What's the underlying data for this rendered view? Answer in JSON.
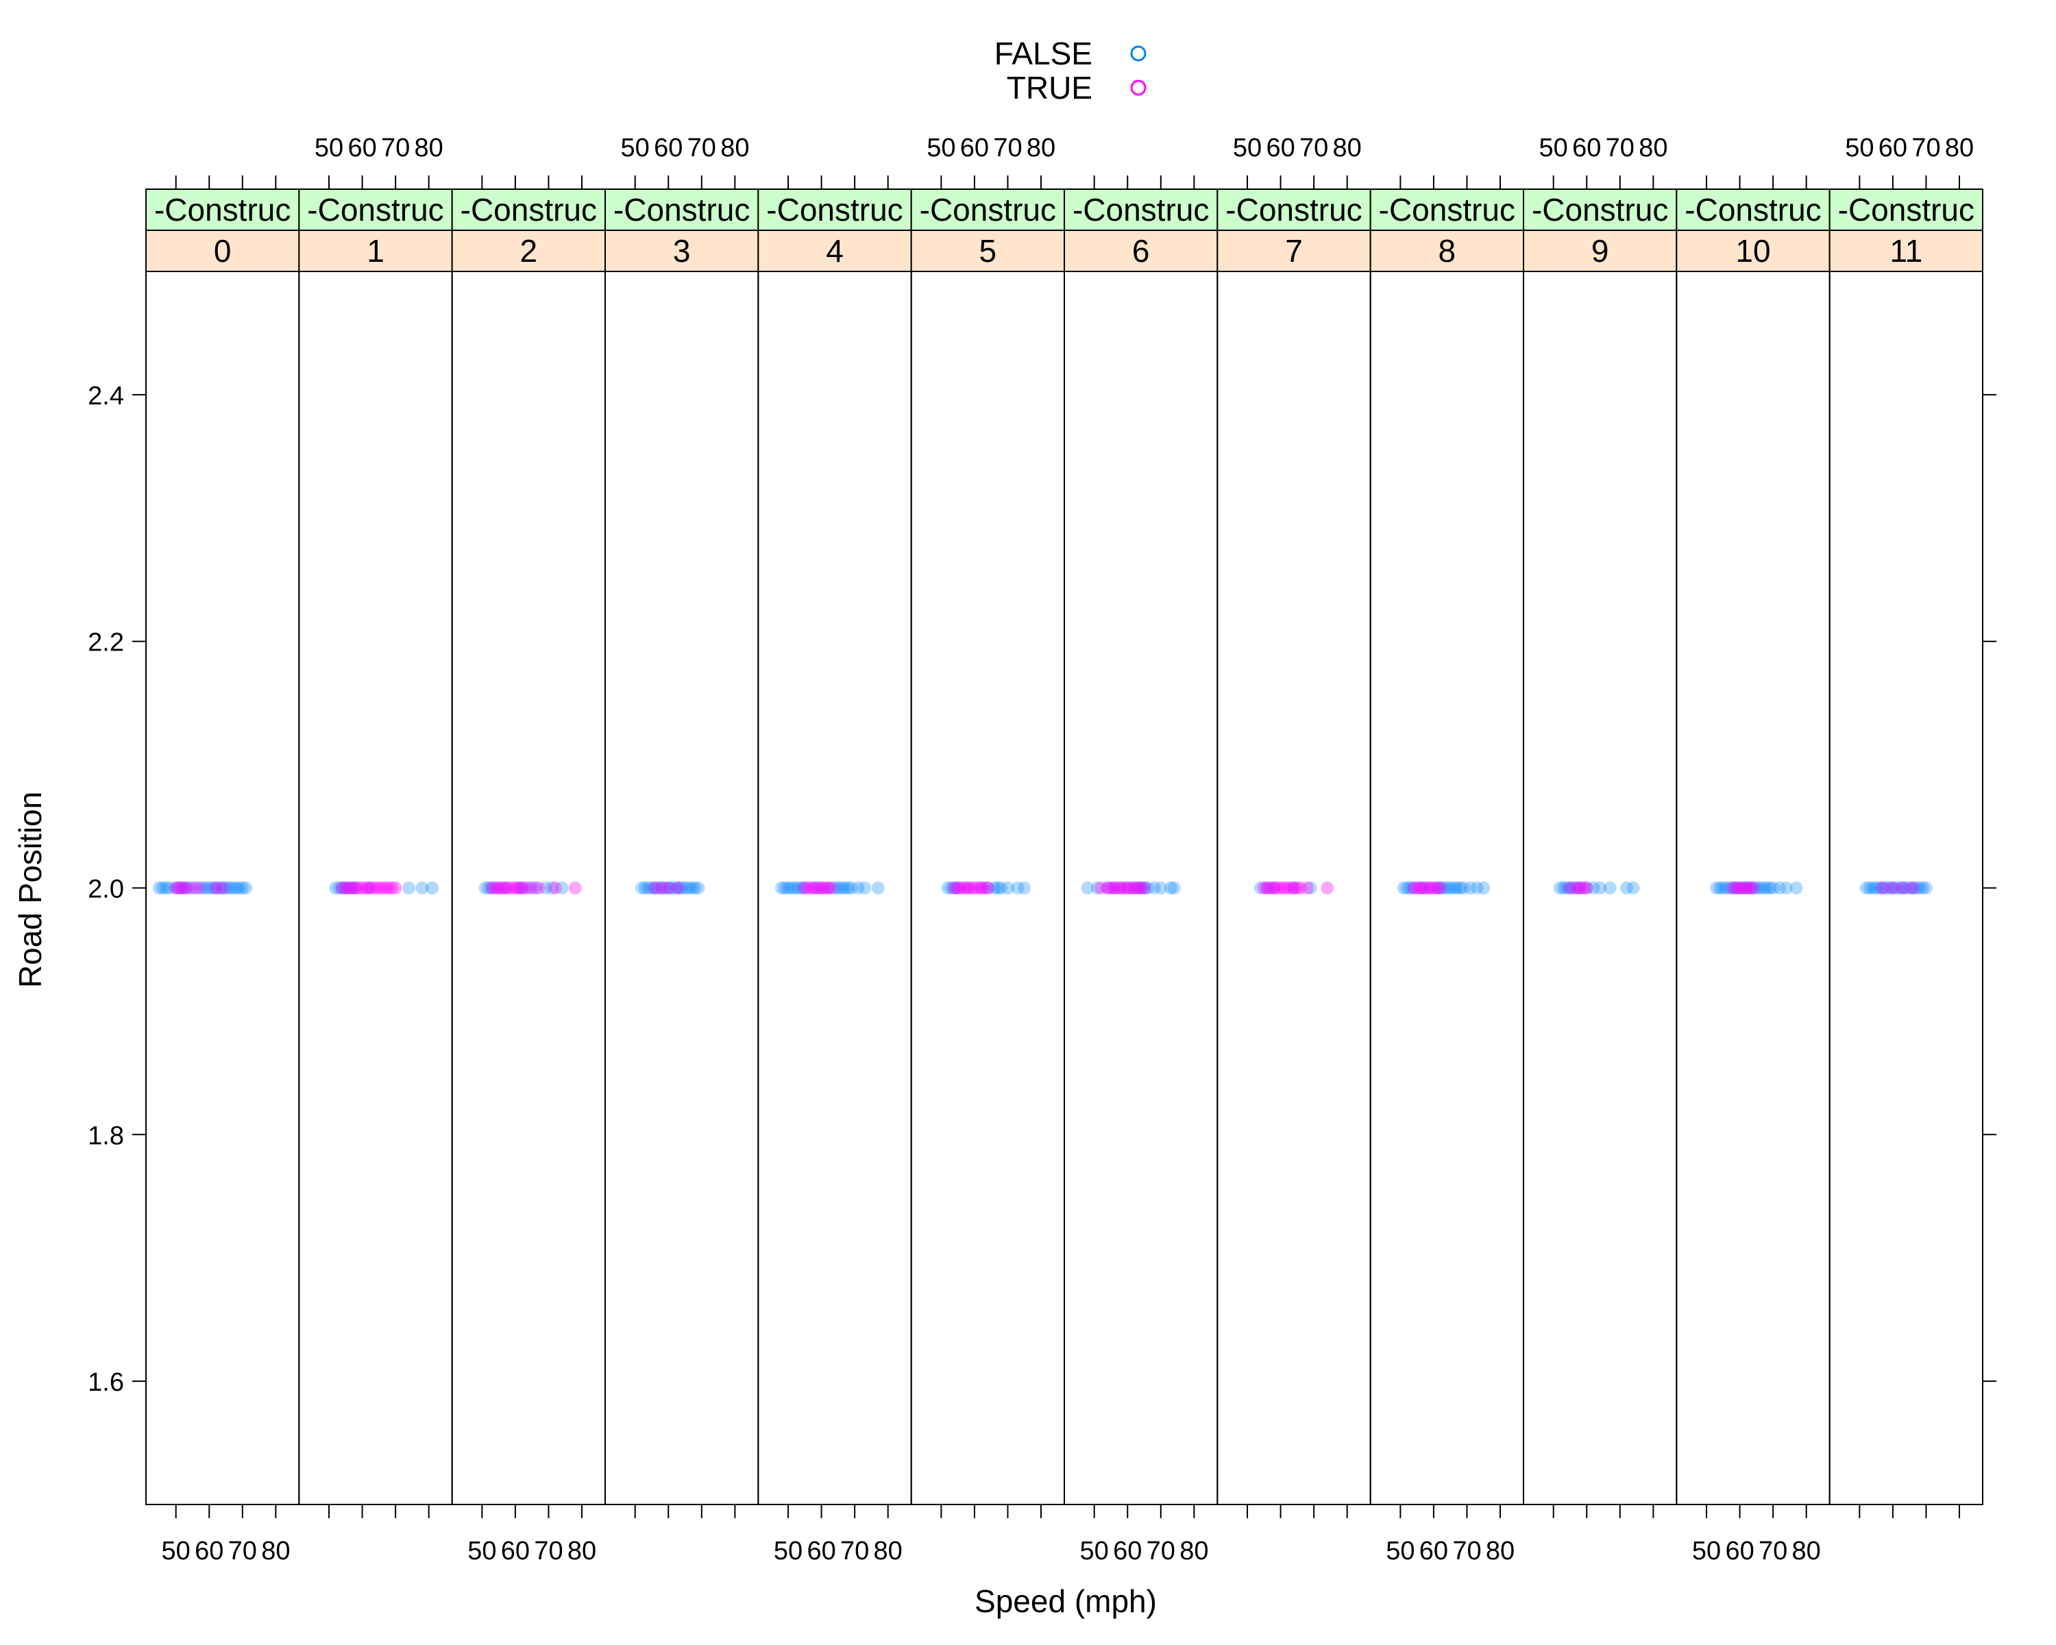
{
  "chart_data": {
    "type": "scatter",
    "title": "",
    "xlabel": "Speed (mph)",
    "ylabel": "Road Position",
    "xlim": [
      41,
      87
    ],
    "ylim": [
      1.5,
      2.5
    ],
    "x_ticks": [
      50,
      60,
      70,
      80
    ],
    "y_ticks": [
      1.6,
      1.8,
      2.0,
      2.2,
      2.4
    ],
    "y_tick_labels": [
      "1.6",
      "1.8",
      "2.0",
      "2.2",
      "2.4"
    ],
    "strip_outer_label": "-Construc",
    "legend": {
      "position": "top",
      "entries": [
        {
          "name": "FALSE",
          "color": "#0080ff"
        },
        {
          "name": "TRUE",
          "color": "#ff00ff"
        }
      ]
    },
    "colors": {
      "FALSE": "#0080ff",
      "TRUE": "#ff00ff",
      "strip_outer": "#ccffcc",
      "strip_inner": "#ffe5cc"
    },
    "panels": [
      {
        "label": "0",
        "false_x": [
          45,
          46,
          47,
          48,
          50,
          51,
          52,
          53,
          54,
          56,
          58,
          59,
          60,
          61,
          62,
          63,
          64,
          65,
          66,
          67,
          68,
          69,
          70,
          71
        ],
        "true_x": [
          50,
          51,
          52,
          53,
          55,
          57,
          62,
          64
        ]
      },
      {
        "label": "1",
        "false_x": [
          52,
          53,
          54,
          55,
          56,
          57,
          58,
          62,
          74,
          78,
          81
        ],
        "true_x": [
          54,
          55,
          56,
          57,
          58,
          59,
          60,
          61,
          62,
          63,
          64,
          65,
          66,
          67,
          68,
          69,
          70
        ]
      },
      {
        "label": "2",
        "false_x": [
          51,
          52,
          53,
          55,
          57,
          61,
          62,
          64,
          66,
          69,
          71,
          74
        ],
        "true_x": [
          53,
          54,
          55,
          56,
          57,
          58,
          59,
          60,
          61,
          62,
          63,
          65,
          67,
          72,
          78
        ]
      },
      {
        "label": "3",
        "false_x": [
          52,
          53,
          54,
          55,
          56,
          57,
          58,
          59,
          60,
          61,
          62,
          63,
          64,
          65,
          66,
          67,
          68,
          69
        ],
        "true_x": [
          56,
          58,
          60,
          63
        ]
      },
      {
        "label": "4",
        "false_x": [
          48,
          49,
          50,
          51,
          52,
          53,
          54,
          55,
          58,
          60,
          62,
          64,
          65,
          66,
          67,
          68,
          69,
          71,
          73,
          77
        ],
        "true_x": [
          55,
          56,
          57,
          58,
          59,
          60,
          61,
          62,
          63
        ]
      },
      {
        "label": "5",
        "false_x": [
          52,
          53,
          54,
          55,
          58,
          62,
          64,
          66,
          67,
          68,
          70,
          73,
          75
        ],
        "true_x": [
          54,
          55,
          56,
          57,
          58,
          59,
          60,
          61,
          62,
          63,
          64
        ]
      },
      {
        "label": "6",
        "false_x": [
          48,
          51,
          54,
          56,
          58,
          60,
          62,
          63,
          64,
          65,
          66,
          68,
          70,
          73,
          74
        ],
        "true_x": [
          52,
          54,
          55,
          56,
          57,
          58,
          59,
          60,
          61,
          62,
          63,
          64,
          65
        ]
      },
      {
        "label": "7",
        "false_x": [
          54,
          56,
          58,
          64,
          69
        ],
        "true_x": [
          55,
          56,
          57,
          58,
          59,
          60,
          61,
          62,
          63,
          64,
          65,
          66,
          68,
          74
        ]
      },
      {
        "label": "8",
        "false_x": [
          51,
          52,
          53,
          54,
          56,
          57,
          59,
          61,
          62,
          63,
          64,
          65,
          66,
          67,
          68,
          69,
          71,
          73,
          75
        ],
        "true_x": [
          54,
          55,
          56,
          57,
          58,
          59,
          60,
          61,
          62
        ]
      },
      {
        "label": "9",
        "false_x": [
          52,
          53,
          54,
          55,
          56,
          57,
          58,
          60,
          62,
          64,
          67,
          72,
          74
        ],
        "true_x": [
          55,
          57,
          58,
          59,
          60
        ]
      },
      {
        "label": "10",
        "false_x": [
          53,
          54,
          55,
          56,
          57,
          58,
          59,
          60,
          61,
          62,
          63,
          64,
          65,
          66,
          67,
          68,
          69,
          70,
          72,
          74,
          77
        ],
        "true_x": [
          58,
          59,
          60,
          61,
          62,
          63,
          64
        ]
      },
      {
        "label": "11",
        "false_x": [
          52,
          53,
          54,
          55,
          56,
          57,
          58,
          59,
          60,
          61,
          62,
          63,
          64,
          65,
          66,
          67,
          68,
          69,
          70
        ],
        "true_x": [
          57,
          60,
          63,
          66
        ]
      }
    ]
  }
}
